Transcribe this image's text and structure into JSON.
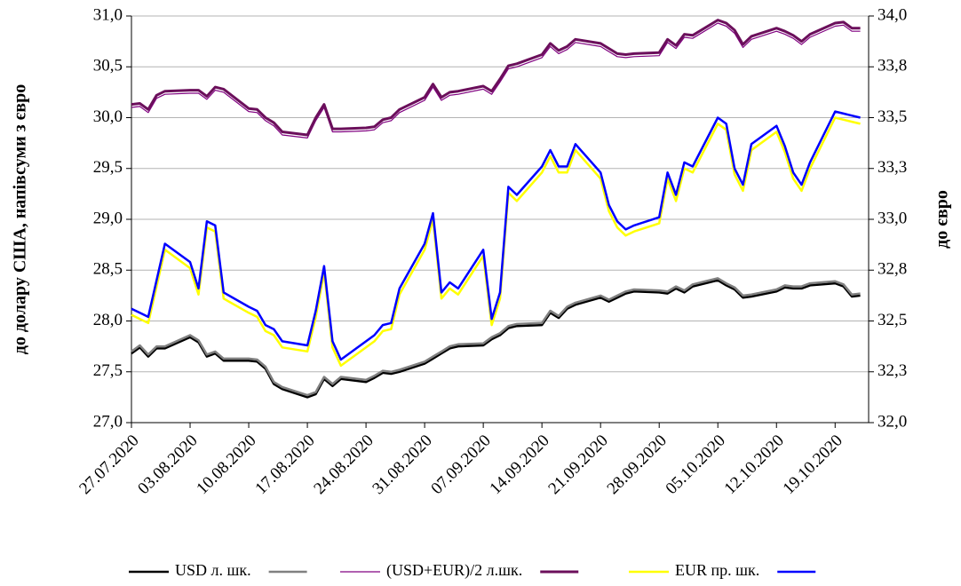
{
  "chart_data": {
    "type": "line",
    "y_label": "до долару США, напівсуми з євро",
    "y2_label": "до євро",
    "grid": true,
    "legend": "bottom",
    "ylim": [
      27,
      31
    ],
    "yticks": [
      {
        "value": 27,
        "label": "27,0"
      },
      {
        "value": 27.5,
        "label": "27,5"
      },
      {
        "value": 28,
        "label": "28,0"
      },
      {
        "value": 28.5,
        "label": "28,5"
      },
      {
        "value": 29,
        "label": "29,0"
      },
      {
        "value": 29.5,
        "label": "29,5"
      },
      {
        "value": 30,
        "label": "30,0"
      },
      {
        "value": 30.5,
        "label": "30,5"
      },
      {
        "value": 31,
        "label": "31,0"
      }
    ],
    "y2lim": [
      32,
      34
    ],
    "y2ticks": [
      {
        "value": 32,
        "label": "32,0"
      },
      {
        "value": 32.25,
        "label": "32,3"
      },
      {
        "value": 32.5,
        "label": "32,5"
      },
      {
        "value": 32.75,
        "label": "32,8"
      },
      {
        "value": 33,
        "label": "33,0"
      },
      {
        "value": 33.25,
        "label": "33,3"
      },
      {
        "value": 33.5,
        "label": "33,5"
      },
      {
        "value": 33.75,
        "label": "33,8"
      },
      {
        "value": 34,
        "label": "34,0"
      }
    ],
    "xlim": [
      "27.07.2020",
      "23.10.2020"
    ],
    "xticks": [
      "27.07.2020",
      "03.08.2020",
      "10.08.2020",
      "17.08.2020",
      "24.08.2020",
      "31.08.2020",
      "07.09.2020",
      "14.09.2020",
      "21.09.2020",
      "28.09.2020",
      "05.10.2020",
      "12.10.2020",
      "19.10.2020"
    ],
    "x": [
      "27.07.2020",
      "28.07.2020",
      "29.07.2020",
      "30.07.2020",
      "31.07.2020",
      "03.08.2020",
      "04.08.2020",
      "05.08.2020",
      "06.08.2020",
      "07.08.2020",
      "10.08.2020",
      "11.08.2020",
      "12.08.2020",
      "13.08.2020",
      "14.08.2020",
      "17.08.2020",
      "18.08.2020",
      "19.08.2020",
      "20.08.2020",
      "21.08.2020",
      "24.08.2020",
      "25.08.2020",
      "26.08.2020",
      "27.08.2020",
      "28.08.2020",
      "31.08.2020",
      "01.09.2020",
      "02.09.2020",
      "03.09.2020",
      "04.09.2020",
      "07.09.2020",
      "08.09.2020",
      "09.09.2020",
      "10.09.2020",
      "11.09.2020",
      "14.09.2020",
      "15.09.2020",
      "16.09.2020",
      "17.09.2020",
      "18.09.2020",
      "21.09.2020",
      "22.09.2020",
      "23.09.2020",
      "24.09.2020",
      "25.09.2020",
      "28.09.2020",
      "29.09.2020",
      "30.09.2020",
      "01.10.2020",
      "02.10.2020",
      "05.10.2020",
      "06.10.2020",
      "07.10.2020",
      "08.10.2020",
      "09.10.2020",
      "12.10.2020",
      "13.10.2020",
      "14.10.2020",
      "15.10.2020",
      "16.10.2020",
      "19.10.2020",
      "20.10.2020",
      "21.10.2020",
      "22.10.2020"
    ],
    "series": [
      {
        "name": "USD л. шк.",
        "lines": [
          {
            "color": "#000000",
            "width": 2.5,
            "values": [
              27.68,
              27.74,
              27.65,
              27.73,
              27.73,
              27.84,
              27.79,
              27.65,
              27.68,
              27.61,
              27.61,
              27.6,
              27.53,
              27.38,
              27.33,
              27.25,
              27.28,
              27.43,
              27.36,
              27.43,
              27.4,
              27.44,
              27.49,
              27.48,
              27.5,
              27.58,
              27.63,
              27.68,
              27.73,
              27.75,
              27.76,
              27.82,
              27.86,
              27.93,
              27.95,
              27.96,
              28.08,
              28.03,
              28.12,
              28.16,
              28.23,
              28.19,
              28.23,
              28.27,
              28.29,
              28.28,
              28.27,
              28.32,
              28.28,
              28.34,
              28.4,
              28.35,
              28.31,
              28.23,
              28.24,
              28.29,
              28.33,
              28.32,
              28.32,
              28.35,
              28.37,
              28.34,
              28.24,
              28.25
            ]
          },
          {
            "color": "#808080",
            "width": 2.5,
            "values": [
              27.7,
              27.76,
              27.67,
              27.75,
              27.75,
              27.86,
              27.81,
              27.67,
              27.7,
              27.63,
              27.63,
              27.62,
              27.55,
              27.4,
              27.35,
              27.27,
              27.3,
              27.45,
              27.38,
              27.45,
              27.42,
              27.46,
              27.51,
              27.5,
              27.52,
              27.6,
              27.65,
              27.7,
              27.75,
              27.77,
              27.78,
              27.84,
              27.88,
              27.95,
              27.97,
              27.98,
              28.1,
              28.05,
              28.14,
              28.18,
              28.25,
              28.21,
              28.25,
              28.29,
              28.31,
              28.3,
              28.29,
              28.34,
              28.3,
              28.36,
              28.42,
              28.37,
              28.33,
              28.25,
              28.26,
              28.31,
              28.35,
              28.34,
              28.34,
              28.37,
              28.39,
              28.36,
              28.26,
              28.27
            ]
          }
        ]
      },
      {
        "name": "(USD+EUR)/2 л.шк.",
        "lines": [
          {
            "color": "#800080",
            "width": 1.2,
            "values": [
              30.1,
              30.11,
              30.05,
              30.19,
              30.23,
              30.24,
              30.24,
              30.18,
              30.27,
              30.25,
              30.06,
              30.05,
              29.97,
              29.92,
              29.83,
              29.8,
              29.97,
              30.1,
              29.86,
              29.86,
              29.87,
              29.88,
              29.95,
              29.97,
              30.05,
              30.17,
              30.3,
              30.17,
              30.22,
              30.23,
              30.28,
              30.23,
              30.35,
              30.48,
              30.5,
              30.59,
              30.7,
              30.63,
              30.67,
              30.74,
              30.7,
              30.65,
              30.6,
              30.59,
              30.6,
              30.61,
              30.74,
              30.68,
              30.79,
              30.78,
              30.93,
              30.9,
              30.83,
              30.69,
              30.77,
              30.85,
              30.82,
              30.78,
              30.72,
              30.79,
              30.9,
              30.91,
              30.85,
              30.85
            ]
          },
          {
            "color": "#6b0f5b",
            "width": 3,
            "values": [
              30.13,
              30.14,
              30.08,
              30.22,
              30.26,
              30.27,
              30.27,
              30.21,
              30.3,
              30.28,
              30.09,
              30.08,
              30.0,
              29.95,
              29.86,
              29.83,
              30.0,
              30.13,
              29.89,
              29.89,
              29.9,
              29.91,
              29.98,
              30.0,
              30.08,
              30.2,
              30.33,
              30.2,
              30.25,
              30.26,
              30.31,
              30.26,
              30.38,
              30.51,
              30.53,
              30.62,
              30.73,
              30.66,
              30.7,
              30.77,
              30.73,
              30.68,
              30.63,
              30.62,
              30.63,
              30.64,
              30.77,
              30.71,
              30.82,
              30.81,
              30.96,
              30.93,
              30.86,
              30.72,
              30.8,
              30.88,
              30.85,
              30.81,
              30.75,
              30.82,
              30.93,
              30.94,
              30.88,
              30.88
            ]
          }
        ]
      },
      {
        "name": "EUR пр. шк.",
        "axis": "y2",
        "lines": [
          {
            "color": "#ffff00",
            "width": 2.5,
            "values": [
              32.53,
              32.51,
              32.49,
              32.67,
              32.85,
              32.76,
              32.63,
              32.96,
              32.94,
              32.61,
              32.54,
              32.52,
              32.45,
              32.43,
              32.37,
              32.35,
              32.52,
              32.74,
              32.37,
              32.28,
              32.37,
              32.4,
              32.45,
              32.46,
              32.63,
              32.85,
              33.0,
              32.61,
              32.66,
              32.63,
              32.82,
              32.48,
              32.61,
              33.13,
              33.09,
              33.23,
              33.31,
              33.23,
              33.23,
              33.34,
              33.2,
              33.04,
              32.96,
              32.92,
              32.94,
              32.98,
              33.2,
              33.09,
              33.25,
              33.23,
              33.47,
              33.44,
              33.22,
              33.14,
              33.34,
              33.43,
              33.33,
              33.2,
              33.14,
              33.25,
              33.5,
              33.49,
              33.48,
              33.47
            ]
          },
          {
            "color": "#0000ff",
            "width": 2.5,
            "values": [
              32.56,
              32.54,
              32.52,
              32.7,
              32.88,
              32.79,
              32.66,
              32.99,
              32.97,
              32.64,
              32.57,
              32.55,
              32.48,
              32.46,
              32.4,
              32.38,
              32.55,
              32.77,
              32.4,
              32.31,
              32.4,
              32.43,
              32.48,
              32.49,
              32.66,
              32.88,
              33.03,
              32.64,
              32.69,
              32.66,
              32.85,
              32.51,
              32.64,
              33.16,
              33.12,
              33.26,
              33.34,
              33.26,
              33.26,
              33.37,
              33.23,
              33.07,
              32.99,
              32.95,
              32.97,
              33.01,
              33.23,
              33.12,
              33.28,
              33.26,
              33.5,
              33.47,
              33.25,
              33.17,
              33.37,
              33.46,
              33.36,
              33.23,
              33.17,
              33.28,
              33.53,
              33.52,
              33.51,
              33.5
            ]
          }
        ]
      }
    ]
  }
}
